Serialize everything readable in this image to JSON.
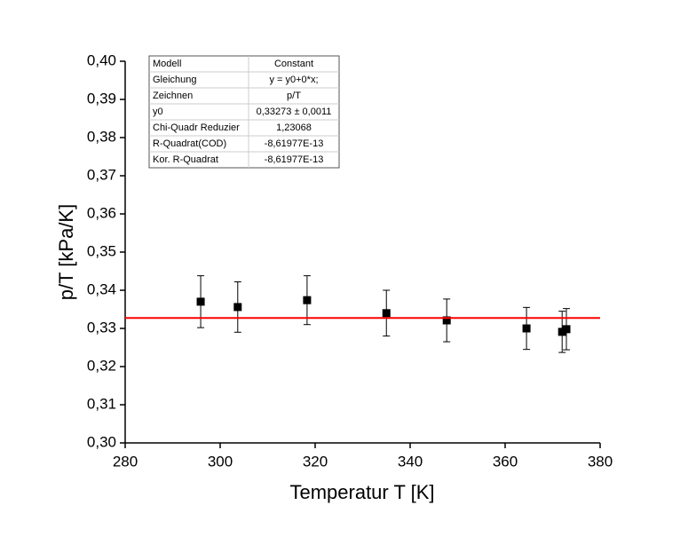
{
  "chart_data": {
    "type": "scatter",
    "x_label": "Temperatur T [K]",
    "y_label": "p/T [kPa/K]",
    "xlim": [
      280,
      380
    ],
    "xticks": [
      280,
      300,
      320,
      340,
      360,
      380
    ],
    "ylim": [
      0.3,
      0.4
    ],
    "yticks": [
      {
        "value": 0.3,
        "label": "0,30"
      },
      {
        "value": 0.31,
        "label": "0,31"
      },
      {
        "value": 0.32,
        "label": "0,32"
      },
      {
        "value": 0.33,
        "label": "0,33"
      },
      {
        "value": 0.34,
        "label": "0,34"
      },
      {
        "value": 0.35,
        "label": "0,35"
      },
      {
        "value": 0.36,
        "label": "0,36"
      },
      {
        "value": 0.37,
        "label": "0,37"
      },
      {
        "value": 0.38,
        "label": "0,38"
      },
      {
        "value": 0.39,
        "label": "0,39"
      },
      {
        "value": 0.4,
        "label": "0,40"
      }
    ],
    "series": [
      {
        "color": "#000000",
        "x": [
          295.9,
          303.7,
          318.3,
          335.0,
          347.7,
          364.5,
          372.0,
          372.9
        ],
        "values": [
          0.337,
          0.3356,
          0.3374,
          0.334,
          0.3321,
          0.33,
          0.3291,
          0.3298
        ],
        "errors": [
          0.0068,
          0.0066,
          0.0064,
          0.006,
          0.0056,
          0.0055,
          0.0054,
          0.0054
        ]
      }
    ],
    "fit": {
      "y0": 0.33273,
      "color": "#ff0000"
    },
    "fit_table": [
      [
        "Modell",
        "Constant"
      ],
      [
        "Gleichung",
        "y = y0+0*x;"
      ],
      [
        "Zeichnen",
        "p/T"
      ],
      [
        "y0",
        "0,33273 ± 0,0011"
      ],
      [
        "Chi-Quadr Reduzier",
        "1,23068"
      ],
      [
        "R-Quadrat(COD)",
        "-8,61977E-13"
      ],
      [
        "Kor. R-Quadrat",
        "-8,61977E-13"
      ]
    ]
  }
}
